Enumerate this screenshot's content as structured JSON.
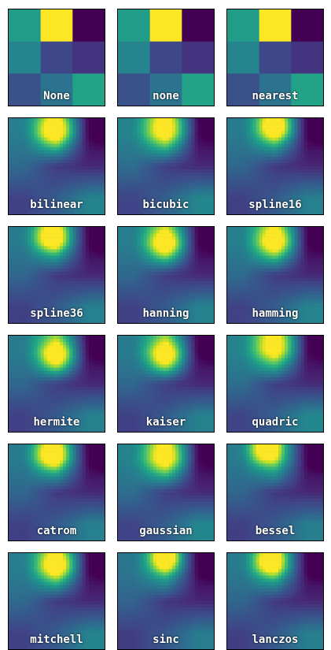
{
  "chart_data": {
    "type": "heatmap",
    "colormap": "viridis",
    "grid": [
      [
        0.55,
        1.0,
        0.0
      ],
      [
        0.45,
        0.22,
        0.15
      ],
      [
        0.25,
        0.38,
        0.58
      ]
    ],
    "panels": [
      {
        "label": "None",
        "style": "blocky"
      },
      {
        "label": "none",
        "style": "blocky"
      },
      {
        "label": "nearest",
        "style": "blocky"
      },
      {
        "label": "bilinear",
        "style": "smooth",
        "sharpness": 0.55,
        "hot": [
          0.48,
          0.12
        ]
      },
      {
        "label": "bicubic",
        "style": "smooth",
        "sharpness": 0.35,
        "hot": [
          0.5,
          0.1
        ]
      },
      {
        "label": "spline16",
        "style": "smooth",
        "sharpness": 0.7,
        "hot": [
          0.5,
          0.08
        ]
      },
      {
        "label": "spline36",
        "style": "smooth",
        "sharpness": 0.7,
        "hot": [
          0.45,
          0.1
        ]
      },
      {
        "label": "hanning",
        "style": "smooth",
        "sharpness": 0.6,
        "hot": [
          0.5,
          0.18
        ]
      },
      {
        "label": "hamming",
        "style": "smooth",
        "sharpness": 0.5,
        "hot": [
          0.5,
          0.15
        ]
      },
      {
        "label": "hermite",
        "style": "smooth",
        "sharpness": 0.65,
        "hot": [
          0.5,
          0.22
        ]
      },
      {
        "label": "kaiser",
        "style": "smooth",
        "sharpness": 0.65,
        "hot": [
          0.5,
          0.22
        ]
      },
      {
        "label": "quadric",
        "style": "smooth",
        "sharpness": 0.3,
        "hot": [
          0.5,
          0.1
        ]
      },
      {
        "label": "catrom",
        "style": "smooth",
        "sharpness": 0.7,
        "hot": [
          0.45,
          0.1
        ]
      },
      {
        "label": "gaussian",
        "style": "smooth",
        "sharpness": 0.35,
        "hot": [
          0.5,
          0.12
        ]
      },
      {
        "label": "bessel",
        "style": "smooth",
        "sharpness": 0.75,
        "hot": [
          0.4,
          0.05
        ]
      },
      {
        "label": "mitchell",
        "style": "smooth",
        "sharpness": 0.55,
        "hot": [
          0.5,
          0.12
        ]
      },
      {
        "label": "sinc",
        "style": "smooth",
        "sharpness": 0.9,
        "hot": [
          0.5,
          0.05
        ]
      },
      {
        "label": "lanczos",
        "style": "smooth",
        "sharpness": 0.75,
        "hot": [
          0.45,
          0.08
        ]
      }
    ]
  }
}
